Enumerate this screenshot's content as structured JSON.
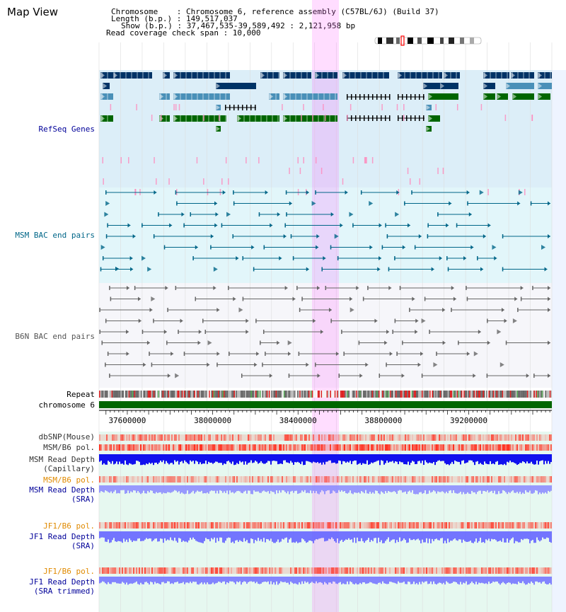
{
  "title": "Map View",
  "info": {
    "chromosome": "Chromosome    : Chromosome 6, reference assembly (C57BL/6J) (Build 37)",
    "length": "Length (b.p.) : 149,517,037",
    "show": "Show (b.p.) : 37,467,535-39,589,492 : 2,121,958 bp",
    "span": "Read coverage check span : 10,000"
  },
  "tracks": {
    "refseq": "RefSeq Genes",
    "msm_bac": "MSM BAC end pairs",
    "b6n_bac": "B6N BAC end pairs",
    "repeat": "Repeat",
    "chromosome": "chromosome 6",
    "dbsnp": "dbSNP(Mouse)",
    "msm_pol1": "MSM/B6 pol.",
    "msm_depth_cap_1": "MSM Read Depth",
    "msm_depth_cap_2": "(Capillary)",
    "msm_pol2": "MSM/B6 pol.",
    "msm_depth_sra_1": "MSM Read Depth",
    "msm_depth_sra_2": "(SRA)",
    "jf1_pol1": "JF1/B6 pol.",
    "jf1_depth_sra_1": "JF1 Read Depth",
    "jf1_depth_sra_2": "(SRA)",
    "jf1_pol2": "JF1/B6 pol.",
    "jf1_trim_1": "JF1 Read Depth",
    "jf1_trim_2": "(SRA trimmed)"
  },
  "axis": {
    "ticks": [
      "37600000",
      "38000000",
      "38400000",
      "38800000",
      "39200000"
    ],
    "start": 37467535,
    "end": 39589492
  },
  "colors": {
    "gene_dark": "#003366",
    "gene_mid": "#4a90b8",
    "gene_green": "#006600",
    "msm_bac": "#006688",
    "b6n_bac": "#666666",
    "highlight": "#ff66ff",
    "depth": "#3333ff"
  }
}
